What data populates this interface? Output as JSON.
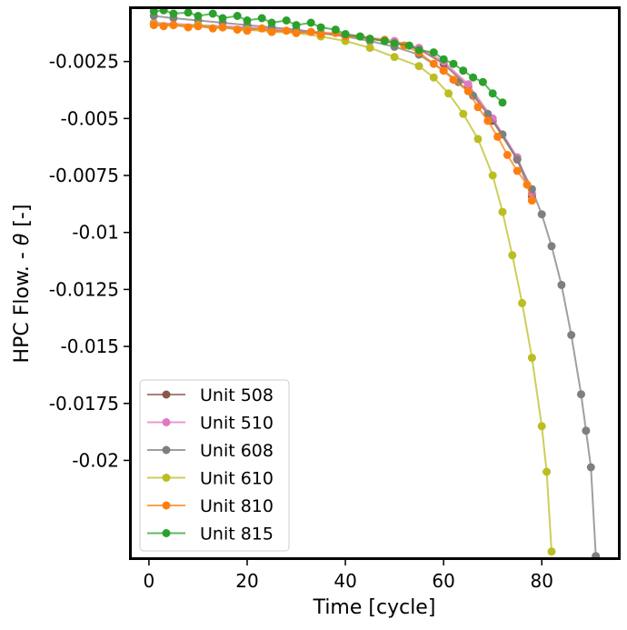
{
  "chart_data": {
    "type": "line",
    "xlabel": "Time [cycle]",
    "ylabel": "HPC Flow. - θ [-]",
    "ylabel_parts": {
      "text": "HPC Flow. - ",
      "symbol": "θ",
      "unit": " [-]"
    },
    "xlim": [
      -3.5,
      95.5
    ],
    "ylim": [
      -0.02425,
      -0.0002
    ],
    "x_ticks": [
      0,
      20,
      40,
      60,
      80
    ],
    "x_tick_labels": [
      "0",
      "20",
      "40",
      "60",
      "80"
    ],
    "y_ticks": [
      -0.0025,
      -0.005,
      -0.0075,
      -0.01,
      -0.0125,
      -0.015,
      -0.0175,
      -0.02
    ],
    "y_tick_labels": [
      "-0.0025",
      "-0.005",
      "-0.0075",
      "-0.01",
      "-0.0125",
      "-0.015",
      "-0.0175",
      "-0.02"
    ],
    "grid": false,
    "legend_position": "lower left",
    "series": [
      {
        "name": "Unit 508",
        "color": "#8c564b",
        "x": [
          1,
          10,
          20,
          30,
          40,
          50,
          55,
          60,
          65,
          70,
          75,
          78
        ],
        "y": [
          -0.00085,
          -0.00095,
          -0.00105,
          -0.0012,
          -0.00135,
          -0.00165,
          -0.00195,
          -0.0026,
          -0.0036,
          -0.0051,
          -0.0068,
          -0.0084
        ]
      },
      {
        "name": "Unit 510",
        "color": "#e377c2",
        "x": [
          1,
          10,
          20,
          30,
          40,
          50,
          55,
          60,
          65,
          70,
          75,
          78
        ],
        "y": [
          -0.0008,
          -0.0009,
          -0.001,
          -0.00115,
          -0.0013,
          -0.0016,
          -0.0019,
          -0.0025,
          -0.0035,
          -0.005,
          -0.0067,
          -0.0083
        ]
      },
      {
        "name": "Unit 608",
        "color": "#7f7f7f",
        "x": [
          1,
          5,
          10,
          15,
          20,
          25,
          30,
          35,
          40,
          45,
          50,
          55,
          60,
          63,
          66,
          69,
          72,
          75,
          78,
          80,
          82,
          84,
          86,
          88,
          89,
          90,
          91
        ],
        "y": [
          -0.0005,
          -0.0006,
          -0.0007,
          -0.0008,
          -0.0009,
          -0.001,
          -0.0011,
          -0.00125,
          -0.0014,
          -0.0016,
          -0.00185,
          -0.0022,
          -0.0029,
          -0.0034,
          -0.004,
          -0.0048,
          -0.0057,
          -0.0068,
          -0.0081,
          -0.0092,
          -0.0106,
          -0.0123,
          -0.0145,
          -0.0171,
          -0.0187,
          -0.0203,
          -0.0242
        ]
      },
      {
        "name": "Unit 610",
        "color": "#bcbd22",
        "x": [
          1,
          5,
          10,
          15,
          20,
          25,
          30,
          35,
          40,
          45,
          50,
          55,
          58,
          61,
          64,
          67,
          70,
          72,
          74,
          76,
          78,
          80,
          81,
          82
        ],
        "y": [
          -0.00085,
          -0.0009,
          -0.0009,
          -0.001,
          -0.0011,
          -0.0012,
          -0.00125,
          -0.0014,
          -0.0016,
          -0.0019,
          -0.0023,
          -0.0027,
          -0.0032,
          -0.0039,
          -0.0048,
          -0.0059,
          -0.0075,
          -0.0091,
          -0.011,
          -0.0131,
          -0.0155,
          -0.0185,
          -0.0205,
          -0.024
        ]
      },
      {
        "name": "Unit 810",
        "color": "#ff7f0e",
        "x": [
          1,
          3,
          5,
          8,
          10,
          13,
          15,
          18,
          20,
          23,
          25,
          28,
          30,
          33,
          35,
          38,
          40,
          43,
          45,
          48,
          50,
          52,
          55,
          58,
          60,
          62,
          65,
          67,
          69,
          71,
          73,
          75,
          77,
          78
        ],
        "y": [
          -0.0009,
          -0.00095,
          -0.0009,
          -0.001,
          -0.00095,
          -0.00105,
          -0.001,
          -0.0011,
          -0.00115,
          -0.00105,
          -0.0012,
          -0.00115,
          -0.00125,
          -0.0012,
          -0.0013,
          -0.00125,
          -0.0014,
          -0.0014,
          -0.0015,
          -0.00155,
          -0.0017,
          -0.0018,
          -0.0021,
          -0.0026,
          -0.0029,
          -0.0033,
          -0.0038,
          -0.0045,
          -0.0051,
          -0.0058,
          -0.0066,
          -0.0073,
          -0.0079,
          -0.0086
        ]
      },
      {
        "name": "Unit 815",
        "color": "#2ca02c",
        "x": [
          1,
          3,
          5,
          8,
          10,
          13,
          15,
          18,
          20,
          23,
          25,
          28,
          30,
          33,
          35,
          38,
          40,
          43,
          45,
          48,
          50,
          53,
          55,
          58,
          60,
          62,
          64,
          66,
          68,
          70,
          72
        ],
        "y": [
          -0.0003,
          -0.00025,
          -0.0004,
          -0.00035,
          -0.0005,
          -0.0004,
          -0.0006,
          -0.0005,
          -0.0007,
          -0.0006,
          -0.0008,
          -0.0007,
          -0.0009,
          -0.0008,
          -0.001,
          -0.0011,
          -0.0013,
          -0.0014,
          -0.0015,
          -0.0016,
          -0.0017,
          -0.0018,
          -0.002,
          -0.0021,
          -0.0024,
          -0.0026,
          -0.0029,
          -0.0032,
          -0.0034,
          -0.0039,
          -0.0043
        ]
      }
    ]
  }
}
